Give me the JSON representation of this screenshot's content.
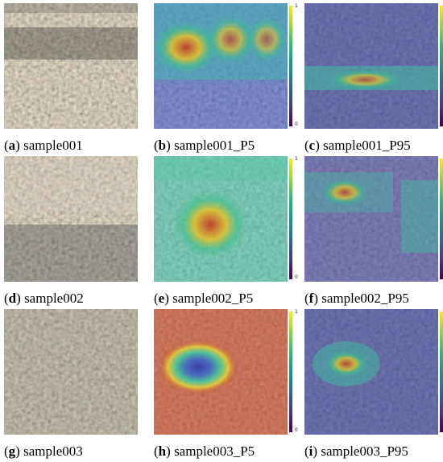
{
  "colorbar": {
    "max": "1",
    "min": "0"
  },
  "colors": {
    "low": "#3b2f8f",
    "mid": "#2fb39a",
    "high": "#c23b22"
  },
  "panels": [
    {
      "letter": "a",
      "name": "sample001"
    },
    {
      "letter": "b",
      "name": "sample001_P5"
    },
    {
      "letter": "c",
      "name": "sample001_P95"
    },
    {
      "letter": "d",
      "name": "sample002"
    },
    {
      "letter": "e",
      "name": "sample002_P5"
    },
    {
      "letter": "f",
      "name": "sample002_P95"
    },
    {
      "letter": "g",
      "name": "sample003"
    },
    {
      "letter": "h",
      "name": "sample003_P5"
    },
    {
      "letter": "i",
      "name": "sample003_P95"
    }
  ]
}
